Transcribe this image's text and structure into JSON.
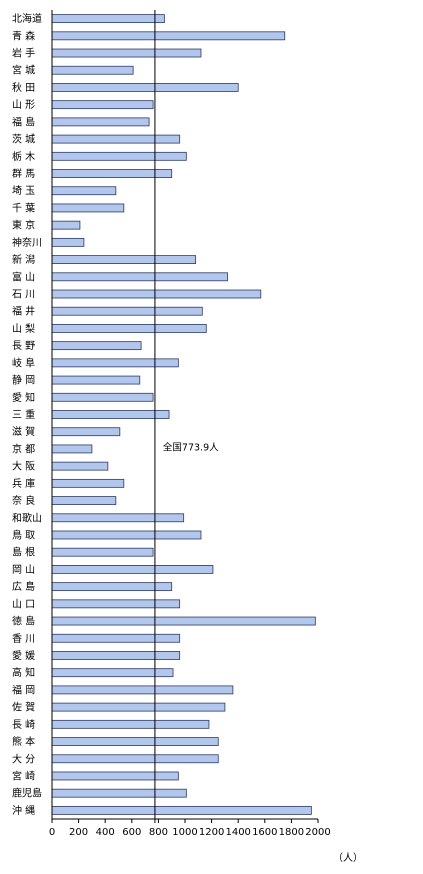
{
  "chart_data": {
    "type": "bar",
    "orientation": "horizontal",
    "categories": [
      "北海道",
      "青 森",
      "岩 手",
      "宮 城",
      "秋 田",
      "山 形",
      "福 島",
      "茨 城",
      "栃 木",
      "群 馬",
      "埼 玉",
      "千 葉",
      "東 京",
      "神奈川",
      "新 潟",
      "富 山",
      "石 川",
      "福 井",
      "山 梨",
      "長 野",
      "岐 阜",
      "静 岡",
      "愛 知",
      "三 重",
      "滋 賀",
      "京 都",
      "大 阪",
      "兵 庫",
      "奈 良",
      "和歌山",
      "鳥 取",
      "島 根",
      "岡 山",
      "広 島",
      "山 口",
      "徳 島",
      "香 川",
      "愛 媛",
      "高 知",
      "福 岡",
      "佐 賀",
      "長 崎",
      "熊 本",
      "大 分",
      "宮 崎",
      "鹿児島",
      "沖 縄"
    ],
    "values": [
      845,
      1750,
      1120,
      610,
      1400,
      760,
      730,
      960,
      1010,
      900,
      480,
      540,
      210,
      240,
      1080,
      1320,
      1570,
      1130,
      1160,
      670,
      950,
      660,
      760,
      880,
      510,
      300,
      420,
      540,
      480,
      990,
      1120,
      760,
      1210,
      900,
      960,
      1980,
      960,
      960,
      910,
      1360,
      1300,
      1180,
      1250,
      1250,
      950,
      1010,
      1950
    ],
    "xlim": [
      0,
      2000
    ],
    "x_ticks": [
      "0",
      "200",
      "400",
      "600",
      "800",
      "1000",
      "1200",
      "1400",
      "1600",
      "1800",
      "2000"
    ],
    "unit_label": "（人）",
    "reference_line": {
      "value": 773.9,
      "label": "全国773.9人"
    },
    "grid": false,
    "legend": "none",
    "colors": {
      "bar_fill": "#b3c6ec",
      "bar_stroke": "#2a3a66",
      "axis": "#000000"
    }
  }
}
